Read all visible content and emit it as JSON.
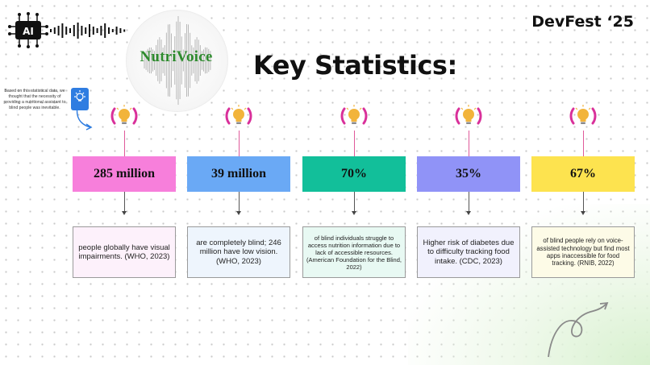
{
  "header": {
    "logo_ai": "AI",
    "brand": "NutriVoice",
    "title": "Key Statistics:",
    "event": "DevFest ‘25"
  },
  "note": {
    "text": "Based on this statistical data, we thought that the necessity of providing a nutritional assistant to blind people was inevitable.",
    "icon": "lightbulb-icon"
  },
  "stats": [
    {
      "value": "285 million",
      "box_color": "#f77fdb",
      "desc_bg": "#fdf1fb",
      "description": "people globally have visual impairments. (WHO, 2023)",
      "desc_size": "9.5px"
    },
    {
      "value": "39 million",
      "box_color": "#6aa9f5",
      "desc_bg": "#eef5fd",
      "description": "are completely blind; 246 million have low vision. (WHO, 2023)",
      "desc_size": "9.5px"
    },
    {
      "value": "70%",
      "box_color": "#12bf9a",
      "desc_bg": "#e8f9f3",
      "description": "of blind individuals struggle to access nutrition information due to lack of accessible resources. (American Foundation for the Blind, 2022)",
      "desc_size": "7.5px"
    },
    {
      "value": "35%",
      "box_color": "#9093f7",
      "desc_bg": "#f1f1fd",
      "description": "Higher risk of diabetes due to difficulty tracking food intake. (CDC, 2023)",
      "desc_size": "9.5px"
    },
    {
      "value": "67%",
      "box_color": "#fde34f",
      "desc_bg": "#fdfbe7",
      "description": "of blind people rely on voice-assisted technology but find most apps inaccessible for food tracking. (RNIB, 2022)",
      "desc_size": "7.8px"
    }
  ],
  "colors": {
    "connector": "#e05a9a",
    "bulb": "#f2b43b",
    "bulb_ring": "#d9309a",
    "note_icon": "#2f7de1"
  }
}
